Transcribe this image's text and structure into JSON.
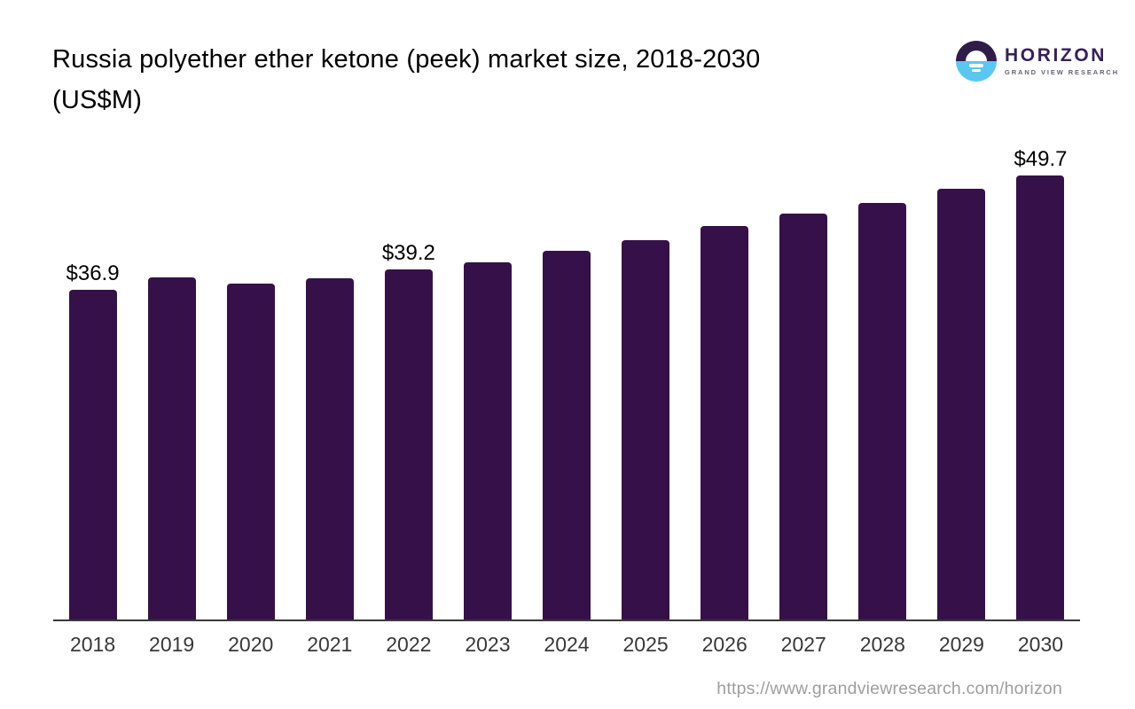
{
  "header": {
    "title_line1": "Russia polyether ether ketone (peek) market size, 2018-2030",
    "title_line2": "(US$M)",
    "logo": {
      "name": "HORIZON",
      "subtitle": "GRAND VIEW RESEARCH",
      "mark_colors": {
        "purple": "#2e1c49",
        "blue": "#5bc6f0"
      }
    }
  },
  "chart_data": {
    "type": "bar",
    "title": "Russia polyether ether ketone (peek) market size, 2018-2030 (US$M)",
    "categories": [
      "2018",
      "2019",
      "2020",
      "2021",
      "2022",
      "2023",
      "2024",
      "2025",
      "2026",
      "2027",
      "2028",
      "2029",
      "2030"
    ],
    "values": [
      36.9,
      38.3,
      37.6,
      38.2,
      39.2,
      40.0,
      41.3,
      42.5,
      44.0,
      45.4,
      46.6,
      48.2,
      49.7
    ],
    "data_labels": [
      "$36.9",
      "",
      "",
      "",
      "$39.2",
      "",
      "",
      "",
      "",
      "",
      "",
      "",
      "$49.7"
    ],
    "xlabel": "",
    "ylabel": "",
    "ylim": [
      0,
      53
    ],
    "grid": false,
    "legend": false,
    "bar_color": "#361149",
    "axis_color": "#3a3a3a"
  },
  "footer": {
    "url": "https://www.grandviewresearch.com/horizon"
  }
}
